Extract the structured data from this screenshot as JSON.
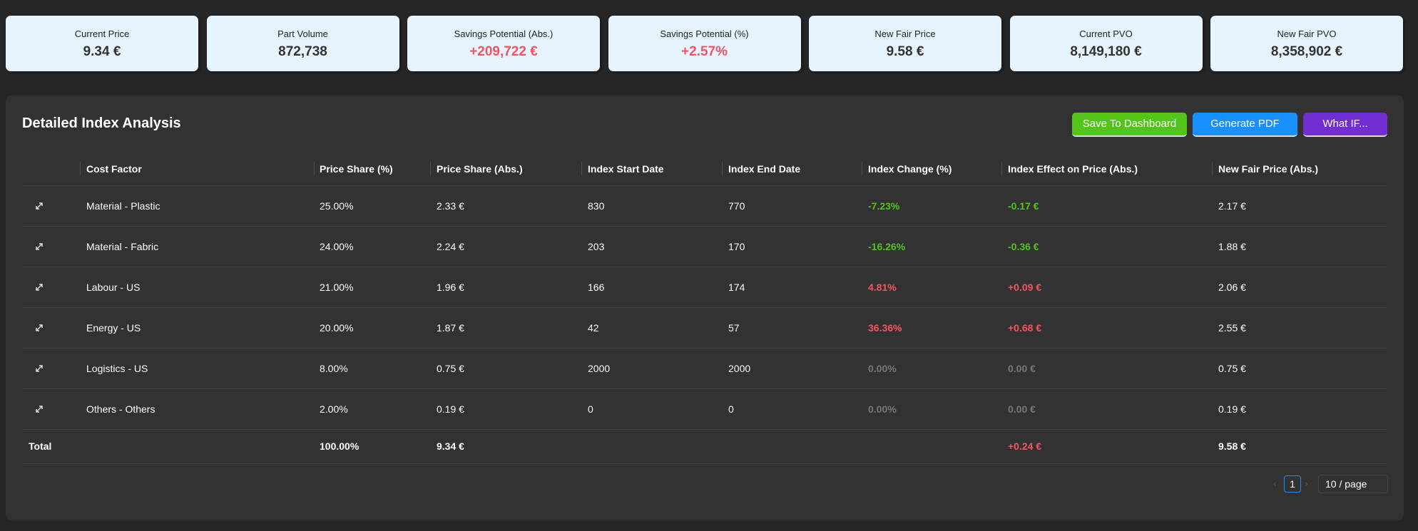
{
  "kpis": [
    {
      "label": "Current Price",
      "value": "9.34 €"
    },
    {
      "label": "Part Volume",
      "value": "872,738"
    },
    {
      "label": "Savings Potential (Abs.)",
      "value": "+209,722 €",
      "color": "#f5545f"
    },
    {
      "label": "Savings Potential (%)",
      "value": "+2.57%",
      "color": "#f5545f"
    },
    {
      "label": "New Fair Price",
      "value": "9.58 €"
    },
    {
      "label": "Current PVO",
      "value": "8,149,180 €"
    },
    {
      "label": "New Fair PVO",
      "value": "8,358,902 €"
    }
  ],
  "panel": {
    "title": "Detailed Index Analysis",
    "buttons": [
      {
        "label": "Save To Dashboard",
        "color": "#52c41a"
      },
      {
        "label": "Generate PDF",
        "color": "#1890ff"
      },
      {
        "label": "What IF...",
        "color": "#722ed1"
      }
    ]
  },
  "table": {
    "columns": [
      "Cost Factor",
      "Price Share (%)",
      "Price Share (Abs.)",
      "Index Start Date",
      "Index End Date",
      "Index Change (%)",
      "Index Effect on Price (Abs.)",
      "New Fair Price (Abs.)"
    ],
    "rows": [
      [
        "Material - Plastic",
        "25.00%",
        "2.33 €",
        "830",
        "770",
        "-7.23%",
        "-0.17 €",
        "2.17 €"
      ],
      [
        "Material - Fabric",
        "24.00%",
        "2.24 €",
        "203",
        "170",
        "-16.26%",
        "-0.36 €",
        "1.88 €"
      ],
      [
        "Labour - US",
        "21.00%",
        "1.96 €",
        "166",
        "174",
        "4.81%",
        "+0.09 €",
        "2.06 €"
      ],
      [
        "Energy - US",
        "20.00%",
        "1.87 €",
        "42",
        "57",
        "36.36%",
        "+0.68 €",
        "2.55 €"
      ],
      [
        "Logistics - US",
        "8.00%",
        "0.75 €",
        "2000",
        "2000",
        "0.00%",
        "0.00 €",
        "0.75 €"
      ],
      [
        "Others - Others",
        "2.00%",
        "0.19 €",
        "0",
        "0",
        "0.00%",
        "0.00 €",
        "0.19 €"
      ]
    ],
    "total": {
      "label": "Total",
      "price_share_pct": "100.00%",
      "price_share_abs": "9.34 €",
      "effect": "+0.24 €",
      "new_fair_price": "9.58 €"
    }
  },
  "pagination": {
    "page": "1",
    "page_size": "10 / page"
  }
}
